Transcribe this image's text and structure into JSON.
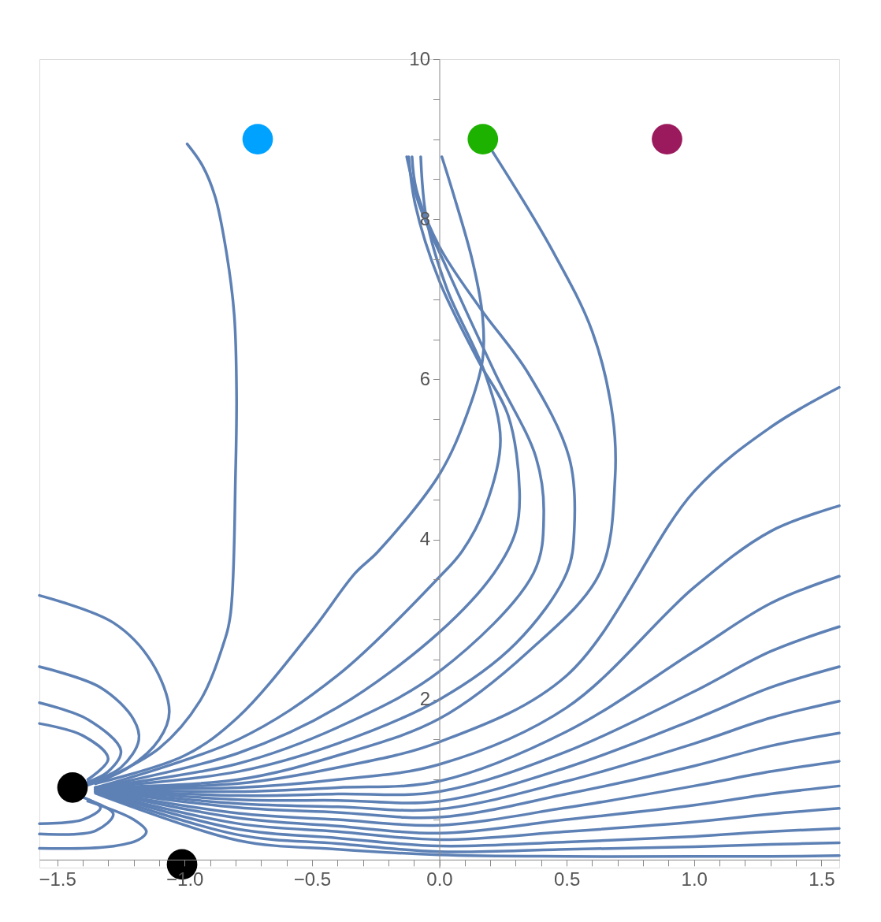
{
  "chart_data": {
    "type": "line",
    "xlim": [
      -1.57,
      1.57
    ],
    "ylim": [
      -0.1,
      10
    ],
    "xticks": [
      {
        "value": -1.5,
        "label": "−1.5"
      },
      {
        "value": -1.4,
        "label": null
      },
      {
        "value": -1.3,
        "label": null
      },
      {
        "value": -1.2,
        "label": null
      },
      {
        "value": -1.1,
        "label": null
      },
      {
        "value": -1.0,
        "label": "−1.0"
      },
      {
        "value": -0.9,
        "label": null
      },
      {
        "value": -0.8,
        "label": null
      },
      {
        "value": -0.7,
        "label": null
      },
      {
        "value": -0.6,
        "label": null
      },
      {
        "value": -0.5,
        "label": "−0.5"
      },
      {
        "value": -0.4,
        "label": null
      },
      {
        "value": -0.3,
        "label": null
      },
      {
        "value": -0.2,
        "label": null
      },
      {
        "value": -0.1,
        "label": null
      },
      {
        "value": 0,
        "label": "0.0"
      },
      {
        "value": 0.1,
        "label": null
      },
      {
        "value": 0.2,
        "label": null
      },
      {
        "value": 0.3,
        "label": null
      },
      {
        "value": 0.4,
        "label": null
      },
      {
        "value": 0.5,
        "label": "0.5"
      },
      {
        "value": 0.6,
        "label": null
      },
      {
        "value": 0.7,
        "label": null
      },
      {
        "value": 0.8,
        "label": null
      },
      {
        "value": 0.9,
        "label": null
      },
      {
        "value": 1.0,
        "label": "1.0"
      },
      {
        "value": 1.1,
        "label": null
      },
      {
        "value": 1.2,
        "label": null
      },
      {
        "value": 1.3,
        "label": null
      },
      {
        "value": 1.4,
        "label": null
      },
      {
        "value": 1.5,
        "label": "1.5"
      }
    ],
    "yticks": [
      {
        "value": 0.5,
        "label": null
      },
      {
        "value": 1,
        "label": null
      },
      {
        "value": 1.5,
        "label": null
      },
      2,
      {
        "value": 2.5,
        "label": null
      },
      {
        "value": 3,
        "label": null
      },
      {
        "value": 3.5,
        "label": null
      },
      4,
      {
        "value": 4.5,
        "label": null
      },
      {
        "value": 5,
        "label": null
      },
      {
        "value": 5.5,
        "label": null
      },
      6,
      {
        "value": 6.5,
        "label": null
      },
      {
        "value": 7,
        "label": null
      },
      {
        "value": 7.5,
        "label": null
      },
      8,
      {
        "value": 8.5,
        "label": null
      },
      {
        "value": 9,
        "label": null
      },
      {
        "value": 9.5,
        "label": null
      },
      10
    ],
    "grid": false,
    "marker": "none",
    "line_style": "solid",
    "series": [
      {
        "color": "#5e81b5",
        "x": [
          -1.57,
          -1.28,
          -1.13,
          -1.06,
          -1.1,
          -1.22,
          -1.38
        ],
        "values": [
          3.3,
          2.96,
          2.47,
          1.85,
          1.5,
          1.15,
          0.93
        ]
      },
      {
        "color": "#5e81b5",
        "x": [
          -1.57,
          -1.33,
          -1.2,
          -1.18,
          -1.25,
          -1.38
        ],
        "values": [
          2.41,
          2.15,
          1.75,
          1.49,
          1.15,
          0.95
        ]
      },
      {
        "color": "#5e81b5",
        "x": [
          -1.57,
          -1.38,
          -1.25,
          -1.3,
          -1.38
        ],
        "values": [
          1.96,
          1.75,
          1.36,
          1.1,
          0.97
        ]
      },
      {
        "color": "#5e81b5",
        "x": [
          -1.57,
          -1.4,
          -1.3,
          -1.38
        ],
        "values": [
          1.7,
          1.55,
          1.26,
          1.0
        ]
      },
      {
        "color": "#5e81b5",
        "x": [
          -1.57,
          -1.3,
          -1.18,
          -1.15,
          -1.2,
          -1.38
        ],
        "values": [
          0.14,
          0.16,
          0.25,
          0.35,
          0.5,
          0.73
        ]
      },
      {
        "color": "#5e81b5",
        "x": [
          -1.57,
          -1.35,
          -1.28,
          -1.38
        ],
        "values": [
          0.32,
          0.36,
          0.57,
          0.75
        ]
      },
      {
        "color": "#5e81b5",
        "x": [
          -1.57,
          -1.4,
          -1.33,
          -1.4
        ],
        "values": [
          0.45,
          0.5,
          0.65,
          0.78
        ]
      },
      {
        "color": "#5e81b5",
        "x": [
          -1.35,
          -1.1,
          -0.94,
          -0.85,
          -0.82,
          -0.8,
          -0.796,
          -0.805,
          -0.836,
          -0.88,
          -0.93,
          -0.99
        ],
        "values": [
          0.95,
          1.39,
          1.98,
          2.67,
          3.06,
          4.83,
          5.82,
          6.8,
          7.59,
          8.28,
          8.67,
          8.94
        ]
      },
      {
        "color": "#5e81b5",
        "x": [
          -1.35,
          -1.0,
          -0.79,
          -0.5,
          -0.33,
          -0.24,
          0,
          0.107,
          0.17,
          0.17,
          0.13,
          0.05,
          0.01
        ],
        "values": [
          0.95,
          1.3,
          1.78,
          2.86,
          3.58,
          3.85,
          4.81,
          5.55,
          6.25,
          6.78,
          7.48,
          8.37,
          8.78
        ]
      },
      {
        "color": "#5e81b5",
        "x": [
          -1.35,
          -0.79,
          -0.4,
          0,
          0.089,
          0.18,
          0.24,
          0.18,
          0.03,
          -0.05,
          -0.073
        ],
        "values": [
          0.9,
          1.5,
          2.3,
          3.53,
          3.85,
          4.4,
          5.24,
          6.07,
          7.13,
          8.0,
          8.78
        ]
      },
      {
        "color": "#5e81b5",
        "x": [
          -1.35,
          -0.79,
          -0.4,
          0,
          0.215,
          0.3,
          0.315,
          0.27,
          0.15,
          0,
          -0.095,
          -0.12
        ],
        "values": [
          0.9,
          1.33,
          1.9,
          2.84,
          3.58,
          4.1,
          4.6,
          5.55,
          6.25,
          7.23,
          8.19,
          8.78
        ]
      },
      {
        "color": "#5e81b5",
        "x": [
          -1.35,
          -0.79,
          -0.4,
          0,
          0.37,
          0.41,
          0.38,
          0.22,
          0.03,
          -0.08,
          -0.128
        ],
        "values": [
          0.9,
          1.2,
          1.65,
          2.35,
          3.58,
          4.32,
          5.02,
          6.07,
          7.38,
          8.19,
          8.78
        ]
      },
      {
        "color": "#5e81b5",
        "x": [
          -1.35,
          -0.79,
          -0.4,
          0,
          0.3,
          0.5,
          0.53,
          0.51,
          0.35,
          0.16,
          0,
          -0.09,
          -0.107
        ],
        "values": [
          0.9,
          1.1,
          1.45,
          2.0,
          2.7,
          3.58,
          4.14,
          5.02,
          6.07,
          6.89,
          7.66,
          8.37,
          8.78
        ]
      },
      {
        "color": "#5e81b5",
        "x": [
          -1.35,
          -0.79,
          -0.4,
          0,
          0.35,
          0.63,
          0.69,
          0.68,
          0.6,
          0.435,
          0.21
        ],
        "values": [
          0.9,
          1.0,
          1.3,
          1.76,
          2.6,
          3.58,
          4.77,
          5.55,
          6.6,
          7.66,
          8.84
        ]
      },
      {
        "color": "#5e81b5",
        "x": [
          -1.35,
          -0.79,
          -0.4,
          0,
          0.5,
          1.0,
          1.3,
          1.57
        ],
        "values": [
          0.9,
          0.95,
          1.15,
          1.47,
          2.3,
          4.6,
          5.4,
          5.9
        ]
      },
      {
        "color": "#5e81b5",
        "x": [
          -1.35,
          -0.79,
          -0.4,
          0,
          0.5,
          1.0,
          1.3,
          1.57
        ],
        "values": [
          0.9,
          0.9,
          1.0,
          1.19,
          1.9,
          3.4,
          4.1,
          4.42
        ]
      },
      {
        "color": "#5e81b5",
        "x": [
          -1.35,
          -0.79,
          -0.4,
          0,
          0.5,
          1.0,
          1.3,
          1.57
        ],
        "values": [
          0.88,
          0.85,
          0.9,
          0.98,
          1.6,
          2.6,
          3.2,
          3.54
        ]
      },
      {
        "color": "#5e81b5",
        "x": [
          -1.35,
          -0.79,
          -0.4,
          0,
          0.5,
          1.0,
          1.3,
          1.57
        ],
        "values": [
          0.88,
          0.8,
          0.82,
          0.85,
          1.35,
          2.1,
          2.6,
          2.91
        ]
      },
      {
        "color": "#5e81b5",
        "x": [
          -1.35,
          -0.79,
          -0.4,
          0,
          0.5,
          1.0,
          1.3,
          1.57
        ],
        "values": [
          0.88,
          0.75,
          0.74,
          0.73,
          1.15,
          1.75,
          2.15,
          2.41
        ]
      },
      {
        "color": "#5e81b5",
        "x": [
          -1.35,
          -0.79,
          -0.4,
          0,
          0.5,
          1.0,
          1.3,
          1.57
        ],
        "values": [
          0.87,
          0.7,
          0.66,
          0.63,
          0.98,
          1.45,
          1.77,
          1.98
        ]
      },
      {
        "color": "#5e81b5",
        "x": [
          -1.35,
          -0.79,
          -0.4,
          0,
          0.5,
          1.0,
          1.3,
          1.57
        ],
        "values": [
          0.87,
          0.65,
          0.59,
          0.53,
          0.82,
          1.17,
          1.42,
          1.58
        ]
      },
      {
        "color": "#5e81b5",
        "x": [
          -1.35,
          -0.79,
          -0.4,
          0,
          0.5,
          1.0,
          1.3,
          1.57
        ],
        "values": [
          0.86,
          0.58,
          0.5,
          0.43,
          0.65,
          0.92,
          1.1,
          1.23
        ]
      },
      {
        "color": "#5e81b5",
        "x": [
          -1.35,
          -0.79,
          -0.4,
          0,
          0.5,
          1.0,
          1.3,
          1.57
        ],
        "values": [
          0.86,
          0.52,
          0.42,
          0.33,
          0.5,
          0.68,
          0.82,
          0.92
        ]
      },
      {
        "color": "#5e81b5",
        "x": [
          -1.35,
          -0.79,
          -0.4,
          0,
          0.5,
          1.0,
          1.3,
          1.57
        ],
        "values": [
          0.85,
          0.45,
          0.35,
          0.25,
          0.35,
          0.47,
          0.57,
          0.64
        ]
      },
      {
        "color": "#5e81b5",
        "x": [
          -1.35,
          -0.79,
          -0.4,
          0,
          0.5,
          1.0,
          1.3,
          1.57
        ],
        "values": [
          0.85,
          0.38,
          0.27,
          0.17,
          0.22,
          0.29,
          0.35,
          0.39
        ]
      },
      {
        "color": "#5e81b5",
        "x": [
          -1.35,
          -0.79,
          -0.4,
          0,
          0.5,
          1.0,
          1.3,
          1.57
        ],
        "values": [
          0.84,
          0.31,
          0.2,
          0.1,
          0.13,
          0.16,
          0.19,
          0.21
        ]
      },
      {
        "color": "#5e81b5",
        "x": [
          -1.35,
          -0.79,
          -0.4,
          0,
          0.5,
          1.0,
          1.3,
          1.57
        ],
        "values": [
          0.83,
          0.24,
          0.13,
          0.06,
          0.04,
          0.04,
          0.04,
          0.05
        ]
      },
      {
        "type": "scatter",
        "marker": "circle",
        "x": [
          -0.713,
          0.171,
          0.894,
          -1.44,
          -1.01
        ],
        "values": [
          9.0,
          9.0,
          9.0,
          0.9,
          -0.06
        ],
        "colors": [
          "#00a2ff",
          "#1db100",
          "#9b1a5e",
          "#000000",
          "#000000"
        ]
      }
    ]
  }
}
